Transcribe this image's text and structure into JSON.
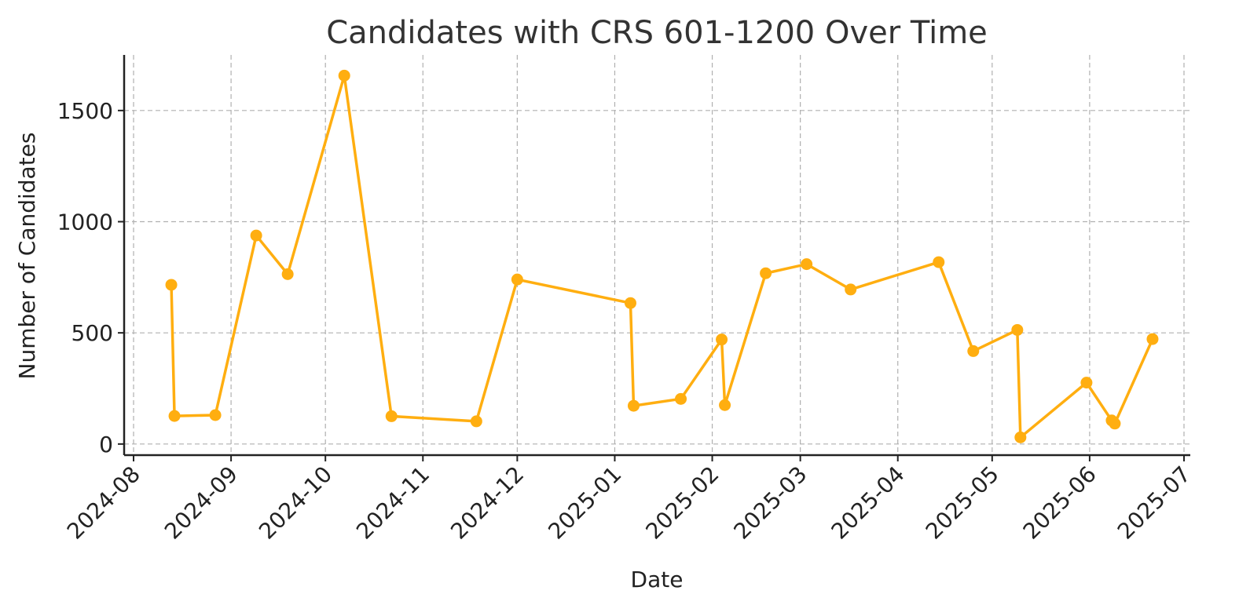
{
  "chart_data": {
    "type": "line",
    "title": "Candidates with CRS 601-1200 Over Time",
    "xlabel": "Date",
    "ylabel": "Number of Candidates",
    "x_range": [
      "2024-07-29",
      "2025-07-03"
    ],
    "ylim": [
      -50,
      1750
    ],
    "grid": true,
    "x_ticks": [
      "2024-08-01",
      "2024-09-01",
      "2024-10-01",
      "2024-11-01",
      "2024-12-01",
      "2025-01-01",
      "2025-02-01",
      "2025-03-01",
      "2025-04-01",
      "2025-05-01",
      "2025-06-01",
      "2025-07-01"
    ],
    "x_tick_labels": [
      "2024-08",
      "2024-09",
      "2024-10",
      "2024-11",
      "2024-12",
      "2025-01",
      "2025-02",
      "2025-03",
      "2025-04",
      "2025-05",
      "2025-06",
      "2025-07"
    ],
    "y_ticks": [
      0,
      500,
      1000,
      1500
    ],
    "y_tick_labels": [
      "0",
      "500",
      "1000",
      "1500"
    ],
    "series": [
      {
        "color": "#FFAE10",
        "points": [
          {
            "x": "2024-08-13",
            "y": 716
          },
          {
            "x": "2024-08-14",
            "y": 126
          },
          {
            "x": "2024-08-27",
            "y": 130
          },
          {
            "x": "2024-09-09",
            "y": 938
          },
          {
            "x": "2024-09-19",
            "y": 764
          },
          {
            "x": "2024-10-07",
            "y": 1657
          },
          {
            "x": "2024-10-22",
            "y": 125
          },
          {
            "x": "2024-11-18",
            "y": 102
          },
          {
            "x": "2024-12-01",
            "y": 740
          },
          {
            "x": "2025-01-06",
            "y": 634
          },
          {
            "x": "2025-01-07",
            "y": 172
          },
          {
            "x": "2025-01-22",
            "y": 203
          },
          {
            "x": "2025-02-04",
            "y": 470
          },
          {
            "x": "2025-02-05",
            "y": 175
          },
          {
            "x": "2025-02-18",
            "y": 768
          },
          {
            "x": "2025-03-03",
            "y": 809
          },
          {
            "x": "2025-03-17",
            "y": 695
          },
          {
            "x": "2025-04-14",
            "y": 818
          },
          {
            "x": "2025-04-25",
            "y": 418
          },
          {
            "x": "2025-05-09",
            "y": 513
          },
          {
            "x": "2025-05-10",
            "y": 30
          },
          {
            "x": "2025-05-31",
            "y": 276
          },
          {
            "x": "2025-06-08",
            "y": 106
          },
          {
            "x": "2025-06-09",
            "y": 92
          },
          {
            "x": "2025-06-21",
            "y": 472
          }
        ]
      }
    ]
  }
}
